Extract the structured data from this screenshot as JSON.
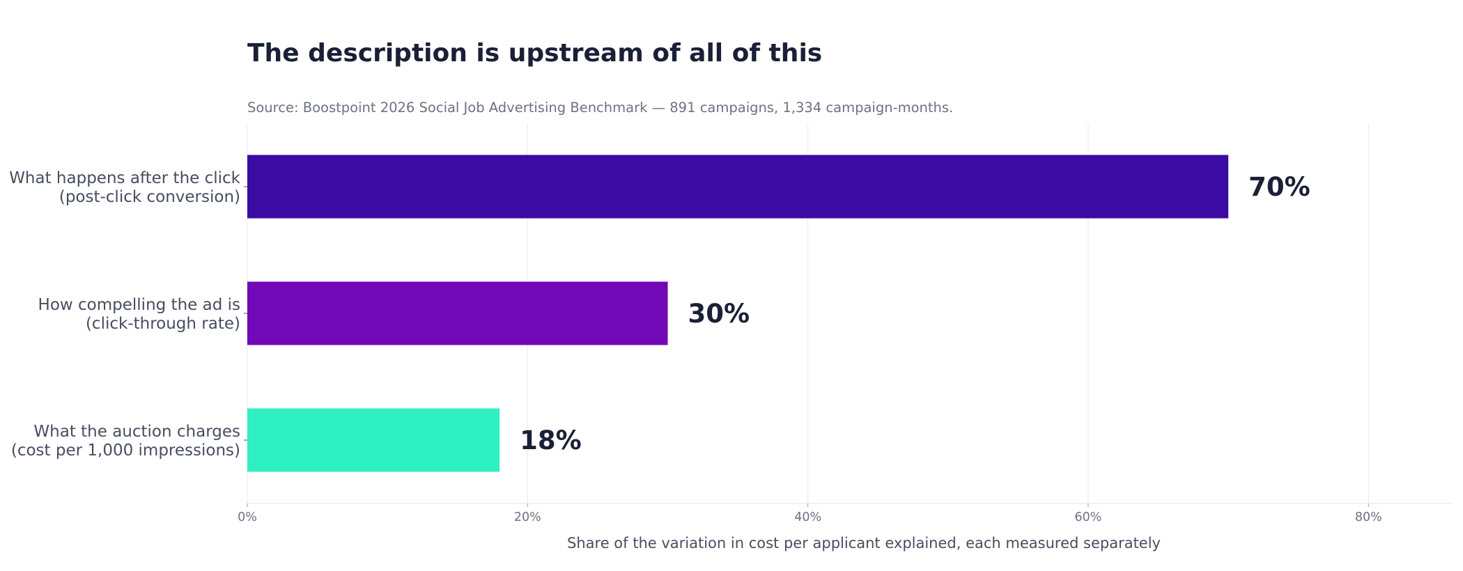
{
  "chart_data": {
    "type": "bar",
    "orientation": "horizontal",
    "title": "The description is upstream of all of this",
    "subtitle": "Source: Boostpoint 2026 Social Job Advertising Benchmark — 891 campaigns, 1,334 campaign-months.",
    "xlabel": "Share of the variation in cost per applicant explained, each measured separately",
    "ylabel": "",
    "xlim": [
      0,
      86
    ],
    "xticks": [
      0,
      20,
      40,
      60,
      80
    ],
    "xtick_labels": [
      "0%",
      "20%",
      "40%",
      "60%",
      "80%"
    ],
    "grid": "vertical",
    "categories": [
      [
        "What happens after the click",
        "(post-click conversion)"
      ],
      [
        "How compelling the ad is",
        "(click-through rate)"
      ],
      [
        "What the auction charges",
        "(cost per 1,000 impressions)"
      ]
    ],
    "values": [
      70,
      30,
      18
    ],
    "value_labels": [
      "70%",
      "30%",
      "18%"
    ],
    "colors": [
      "#3b0ca3",
      "#7209b7",
      "#2ef0c2"
    ]
  }
}
